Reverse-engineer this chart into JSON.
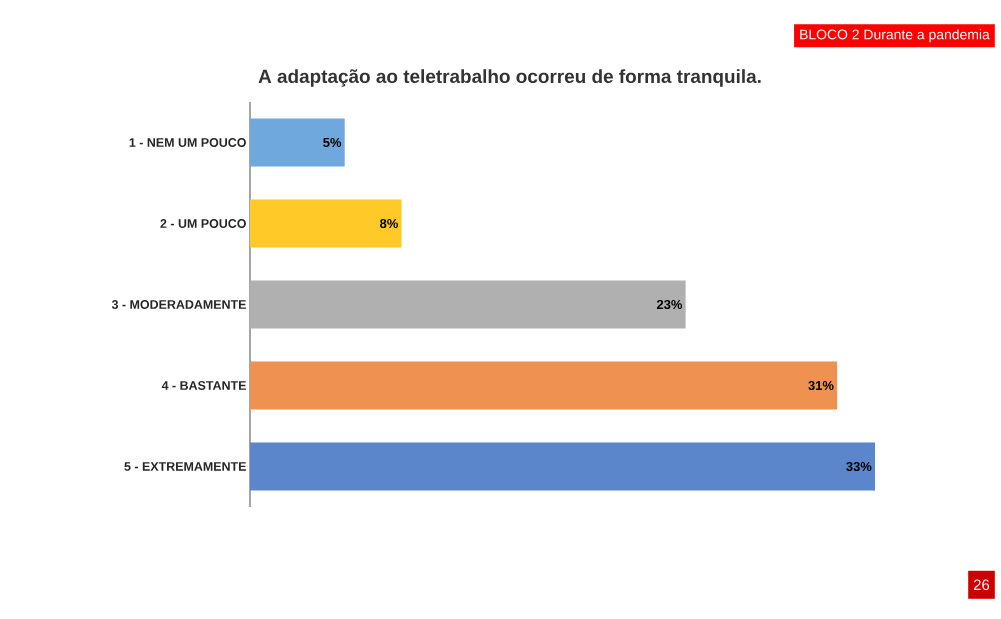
{
  "chart_data": {
    "type": "bar",
    "orientation": "horizontal",
    "title": "A adaptação ao teletrabalho ocorreu de forma tranquila.",
    "categories": [
      "1 - NEM UM POUCO",
      "2 - UM POUCO",
      "3 - MODERADAMENTE",
      "4 - BASTANTE",
      "5 - EXTREMAMENTE"
    ],
    "values": [
      5,
      8,
      23,
      31,
      33
    ],
    "value_labels": [
      "5%",
      "8%",
      "23%",
      "31%",
      "33%"
    ],
    "colors": [
      "#6fa8dc",
      "#ffca28",
      "#b0b0b0",
      "#ef9150",
      "#5b86cb"
    ],
    "annotations": [
      "BLOCO 2 Durante a pandemia",
      "26"
    ]
  }
}
